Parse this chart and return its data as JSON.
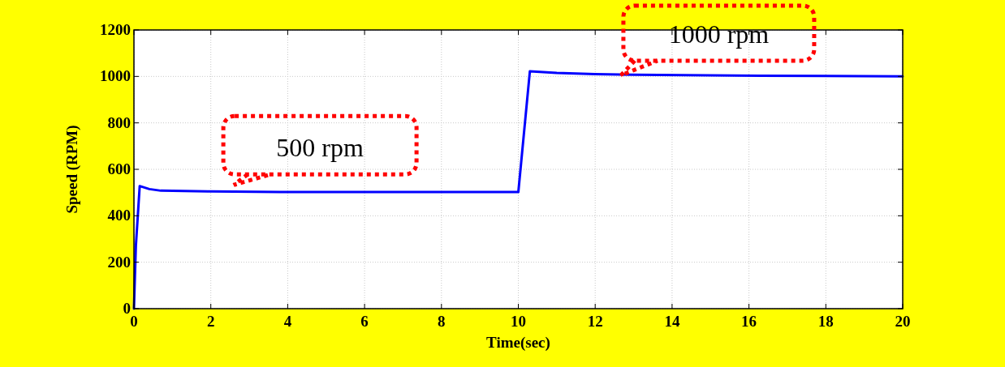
{
  "chart_data": {
    "type": "line",
    "xlabel": "Time(sec)",
    "ylabel": "Speed (RPM)",
    "x": [
      0,
      0.05,
      0.15,
      0.4,
      0.7,
      2,
      3.8,
      10,
      10.3,
      11,
      12,
      13,
      16.3,
      20
    ],
    "series": [
      {
        "color": "#0000ff",
        "values": [
          0,
          270,
          528,
          515,
          508,
          505,
          502,
          502,
          1022,
          1015,
          1010,
          1007,
          1003,
          1000
        ]
      }
    ],
    "xlim": [
      0,
      20
    ],
    "xticks": [
      0,
      2,
      4,
      6,
      8,
      10,
      12,
      14,
      16,
      18,
      20
    ],
    "ylim": [
      0,
      1200
    ],
    "yticks": [
      0,
      200,
      400,
      600,
      800,
      1000,
      1200
    ],
    "grid": true,
    "marker": "none",
    "line_style": "solid",
    "annotations": [
      {
        "text": "500 rpm",
        "x": 2.6,
        "y": 505
      },
      {
        "text": "1000 rpm",
        "x": 12.67,
        "y": 1005
      }
    ]
  }
}
